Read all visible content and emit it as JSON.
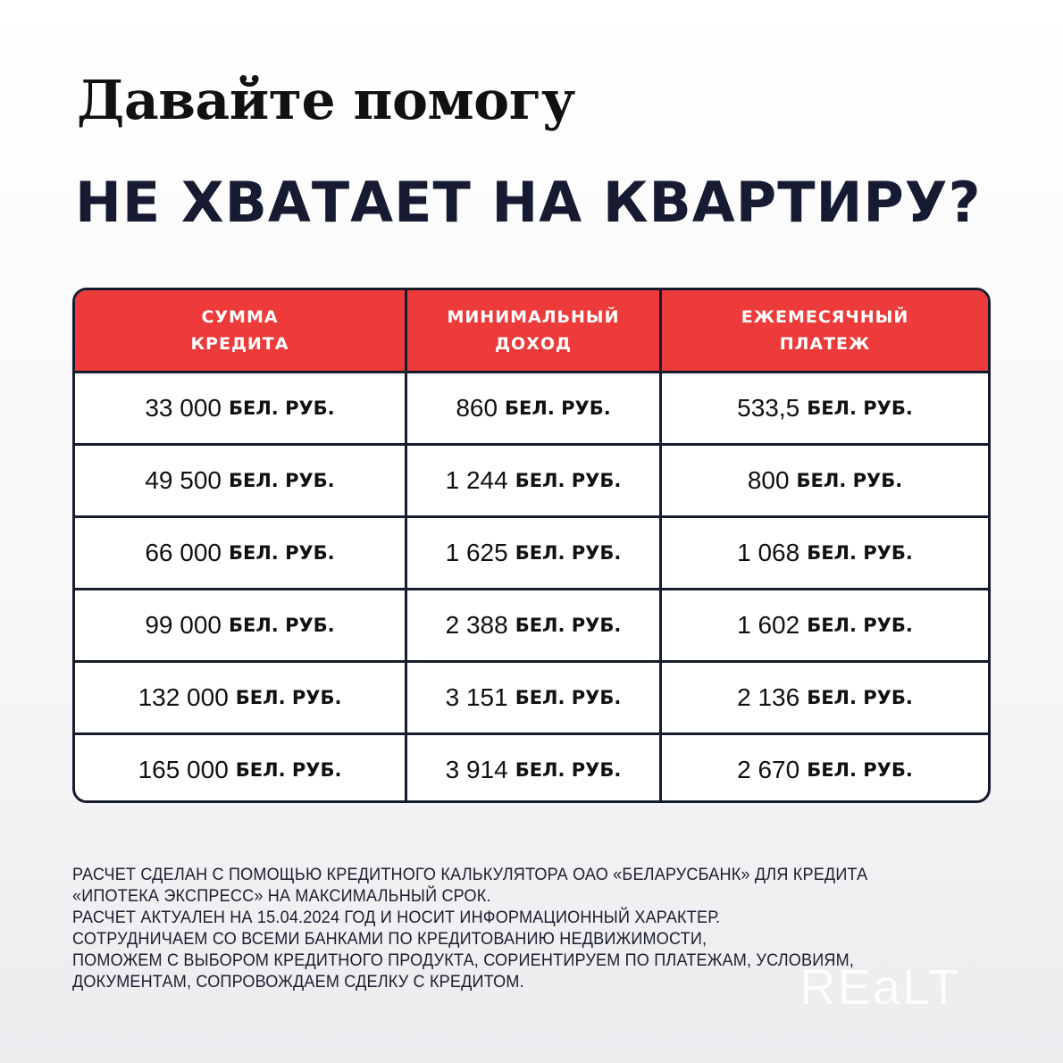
{
  "title_line1": "Давайте помогу",
  "title_line2": "НЕ ХВАТАЕТ НА КВАРТИРУ?",
  "table": {
    "headers": [
      "СУММА\nКРЕДИТА",
      "МИНИМАЛЬНЫЙ\nДОХОД",
      "ЕЖЕМЕСЯЧНЫЙ\nПЛАТЕЖ"
    ],
    "unit": "БЕЛ. РУБ.",
    "rows": [
      [
        "33 000",
        "860",
        "533,5"
      ],
      [
        "49 500",
        "1 244",
        "800"
      ],
      [
        "66 000",
        "1 625",
        "1 068"
      ],
      [
        "99 000",
        "2 388",
        "1 602"
      ],
      [
        "132 000",
        "3 151",
        "2 136"
      ],
      [
        "165 000",
        "3 914",
        "2 670"
      ]
    ],
    "header_color": "#ec3b3a"
  },
  "notes": [
    "РАСЧЕТ СДЕЛАН С ПОМОЩЬЮ КРЕДИТНОГО КАЛЬКУЛЯТОРА ОАО «БЕЛАРУСБАНК» ДЛЯ КРЕДИТА",
    "«ИПОТЕКА ЭКСПРЕСС» НА МАКСИМАЛЬНЫЙ СРОК.",
    "РАСЧЕТ АКТУАЛЕН НА 15.04.2024 ГОД И НОСИТ ИНФОРМАЦИОННЫЙ ХАРАКТЕР.",
    "СОТРУДНИЧАЕМ СО ВСЕМИ БАНКАМИ ПО КРЕДИТОВАНИЮ НЕДВИЖИМОСТИ,",
    "ПОМОЖЕМ С ВЫБОРОМ КРЕДИТНОГО ПРОДУКТА, СОРИЕНТИРУЕМ ПО ПЛАТЕЖАМ, УСЛОВИЯМ,",
    "ДОКУМЕНТАМ, СОПРОВОЖДАЕМ СДЕЛКУ С КРЕДИТОМ."
  ],
  "watermark": "REaLT"
}
